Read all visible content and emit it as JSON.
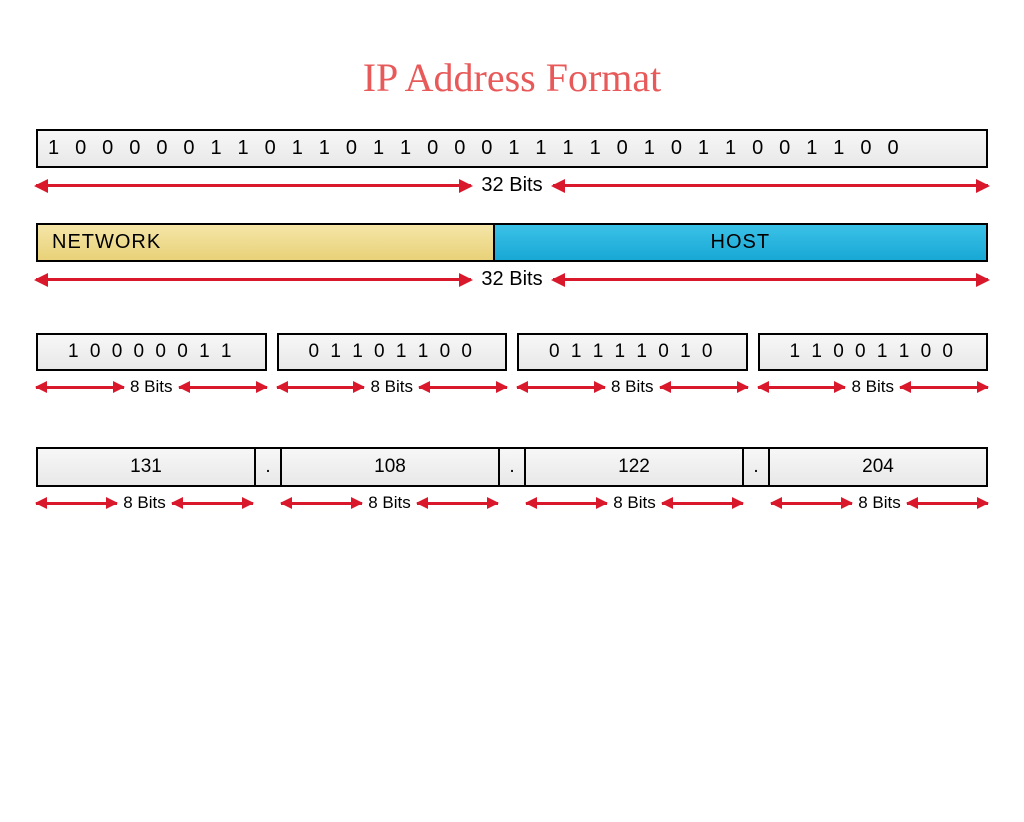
{
  "title": {
    "text": "IP Address Format",
    "color": "#e85a5a",
    "fontsize": 40
  },
  "colors": {
    "arrow": "#d9182b",
    "box_bg_light": "#f7f7f7",
    "box_bg_dark": "#e8e8e8",
    "network_bg_top": "#f5e6a8",
    "network_bg_bottom": "#e8d178",
    "host_bg_top": "#3bc1e8",
    "host_bg_bottom": "#18a8d4",
    "border": "#000000",
    "text": "#000000"
  },
  "binary_full": "1 0 0 0 0 0 1 1 0 1 1 0 1 1 0 0 0 1 1 1 1 0 1 0 1 1 0 0 1 1 0 0",
  "span_label_32": "32 Bits",
  "network_label": "NETWORK",
  "host_label": "HOST",
  "octets_binary": [
    "1 0 0 0 0 0 1 1",
    "0 1 1 0 1 1 0 0",
    "0 1 1 1 1 0 1 0",
    "1 1 0 0 1 1 0 0"
  ],
  "octet_label": "8 Bits",
  "decimals": [
    "131",
    "108",
    "122",
    "204"
  ],
  "dot": "."
}
